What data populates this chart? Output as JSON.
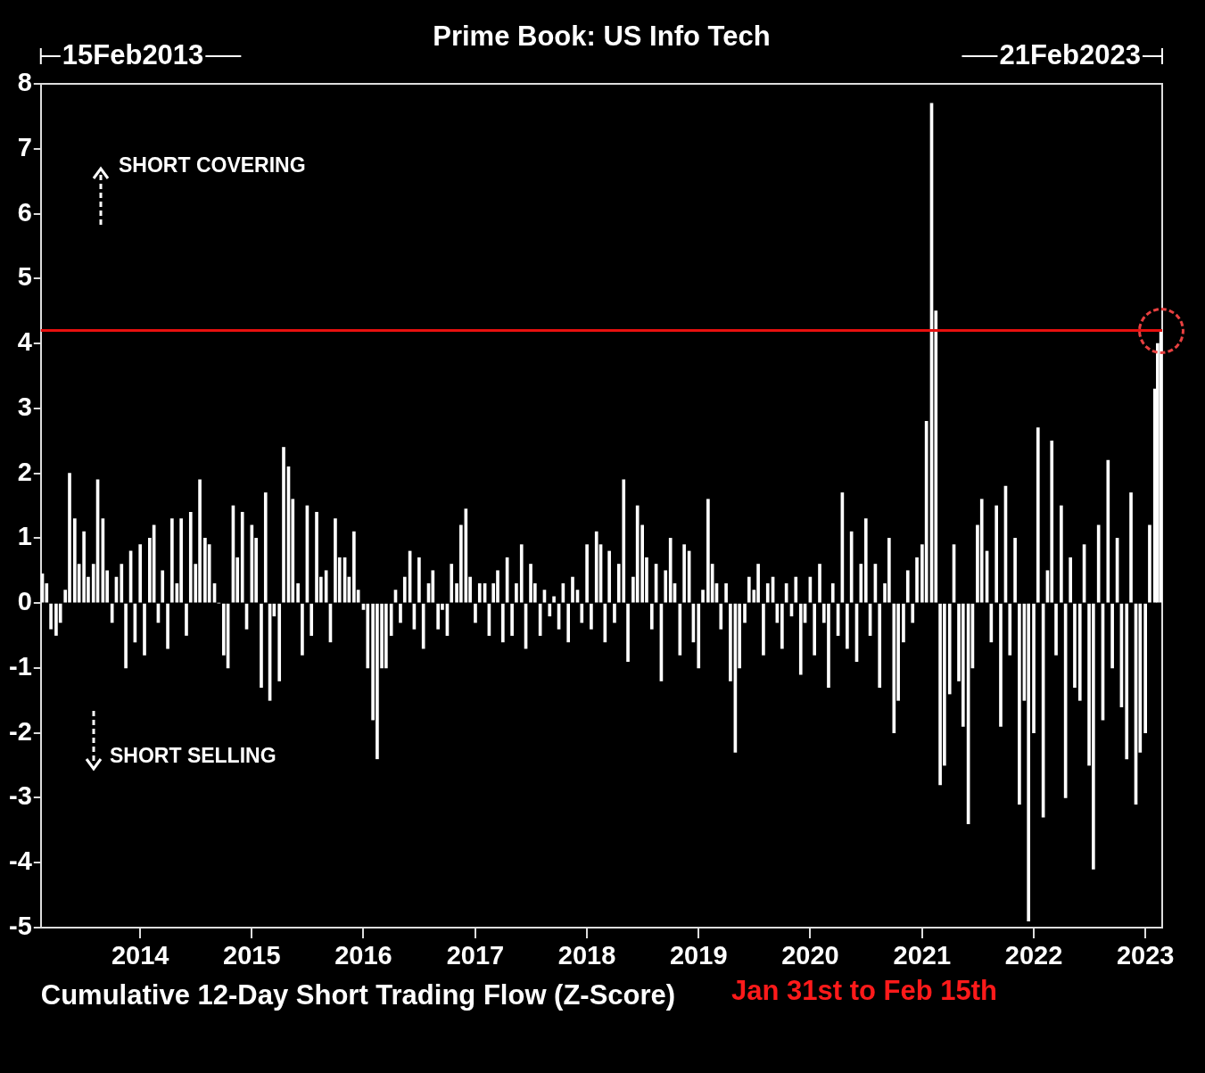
{
  "chart_data": {
    "type": "bar",
    "title": "Prime Book: US Info Tech",
    "xlabel": "Cumulative 12-Day Short Trading Flow (Z-Score)",
    "x": [
      "2013-02-15",
      "2013-03-01",
      "2013-03-15",
      "2013-04-01",
      "2013-04-15",
      "2013-05-01",
      "2013-05-15",
      "2013-06-01",
      "2013-06-15",
      "2013-07-01",
      "2013-07-15",
      "2013-08-01",
      "2013-08-15",
      "2013-09-01",
      "2013-09-15",
      "2013-10-01",
      "2013-10-15",
      "2013-11-01",
      "2013-11-15",
      "2013-12-01",
      "2013-12-15",
      "2014-01-01",
      "2014-01-15",
      "2014-02-01",
      "2014-02-15",
      "2014-03-01",
      "2014-03-15",
      "2014-04-01",
      "2014-04-15",
      "2014-05-01",
      "2014-05-15",
      "2014-06-01",
      "2014-06-15",
      "2014-07-01",
      "2014-07-15",
      "2014-08-01",
      "2014-08-15",
      "2014-09-01",
      "2014-09-15",
      "2014-10-01",
      "2014-10-15",
      "2014-11-01",
      "2014-11-15",
      "2014-12-01",
      "2014-12-15",
      "2015-01-01",
      "2015-01-15",
      "2015-02-01",
      "2015-02-15",
      "2015-03-01",
      "2015-03-15",
      "2015-04-01",
      "2015-04-15",
      "2015-05-01",
      "2015-05-15",
      "2015-06-01",
      "2015-06-15",
      "2015-07-01",
      "2015-07-15",
      "2015-08-01",
      "2015-08-15",
      "2015-09-01",
      "2015-09-15",
      "2015-10-01",
      "2015-10-15",
      "2015-11-01",
      "2015-11-15",
      "2015-12-01",
      "2015-12-15",
      "2016-01-01",
      "2016-01-15",
      "2016-02-01",
      "2016-02-15",
      "2016-03-01",
      "2016-03-15",
      "2016-04-01",
      "2016-04-15",
      "2016-05-01",
      "2016-05-15",
      "2016-06-01",
      "2016-06-15",
      "2016-07-01",
      "2016-07-15",
      "2016-08-01",
      "2016-08-15",
      "2016-09-01",
      "2016-09-15",
      "2016-10-01",
      "2016-10-15",
      "2016-11-01",
      "2016-11-15",
      "2016-12-01",
      "2016-12-15",
      "2017-01-01",
      "2017-01-15",
      "2017-02-01",
      "2017-02-15",
      "2017-03-01",
      "2017-03-15",
      "2017-04-01",
      "2017-04-15",
      "2017-05-01",
      "2017-05-15",
      "2017-06-01",
      "2017-06-15",
      "2017-07-01",
      "2017-07-15",
      "2017-08-01",
      "2017-08-15",
      "2017-09-01",
      "2017-09-15",
      "2017-10-01",
      "2017-10-15",
      "2017-11-01",
      "2017-11-15",
      "2017-12-01",
      "2017-12-15",
      "2018-01-01",
      "2018-01-15",
      "2018-02-01",
      "2018-02-15",
      "2018-03-01",
      "2018-03-15",
      "2018-04-01",
      "2018-04-15",
      "2018-05-01",
      "2018-05-15",
      "2018-06-01",
      "2018-06-15",
      "2018-07-01",
      "2018-07-15",
      "2018-08-01",
      "2018-08-15",
      "2018-09-01",
      "2018-09-15",
      "2018-10-01",
      "2018-10-15",
      "2018-11-01",
      "2018-11-15",
      "2018-12-01",
      "2018-12-15",
      "2019-01-01",
      "2019-01-15",
      "2019-02-01",
      "2019-02-15",
      "2019-03-01",
      "2019-03-15",
      "2019-04-01",
      "2019-04-15",
      "2019-05-01",
      "2019-05-15",
      "2019-06-01",
      "2019-06-15",
      "2019-07-01",
      "2019-07-15",
      "2019-08-01",
      "2019-08-15",
      "2019-09-01",
      "2019-09-15",
      "2019-10-01",
      "2019-10-15",
      "2019-11-01",
      "2019-11-15",
      "2019-12-01",
      "2019-12-15",
      "2020-01-01",
      "2020-01-15",
      "2020-02-01",
      "2020-02-15",
      "2020-03-01",
      "2020-03-15",
      "2020-04-01",
      "2020-04-15",
      "2020-05-01",
      "2020-05-15",
      "2020-06-01",
      "2020-06-15",
      "2020-07-01",
      "2020-07-15",
      "2020-08-01",
      "2020-08-15",
      "2020-09-01",
      "2020-09-15",
      "2020-10-01",
      "2020-10-15",
      "2020-11-01",
      "2020-11-15",
      "2020-12-01",
      "2020-12-15",
      "2021-01-01",
      "2021-01-15",
      "2021-02-01",
      "2021-02-15",
      "2021-03-01",
      "2021-03-15",
      "2021-04-01",
      "2021-04-15",
      "2021-05-01",
      "2021-05-15",
      "2021-06-01",
      "2021-06-15",
      "2021-07-01",
      "2021-07-15",
      "2021-08-01",
      "2021-08-15",
      "2021-09-01",
      "2021-09-15",
      "2021-10-01",
      "2021-10-15",
      "2021-11-01",
      "2021-11-15",
      "2021-12-01",
      "2021-12-15",
      "2022-01-01",
      "2022-01-15",
      "2022-02-01",
      "2022-02-15",
      "2022-03-01",
      "2022-03-15",
      "2022-04-01",
      "2022-04-15",
      "2022-05-01",
      "2022-05-15",
      "2022-06-01",
      "2022-06-15",
      "2022-07-01",
      "2022-07-15",
      "2022-08-01",
      "2022-08-15",
      "2022-09-01",
      "2022-09-15",
      "2022-10-01",
      "2022-10-15",
      "2022-11-01",
      "2022-11-15",
      "2022-12-01",
      "2022-12-15",
      "2023-01-01",
      "2023-01-15",
      "2023-02-01",
      "2023-02-10",
      "2023-02-21"
    ],
    "series": [
      {
        "color": "#ffffff",
        "values": [
          0.45,
          0.3,
          -0.4,
          -0.5,
          -0.3,
          0.2,
          2.0,
          1.3,
          0.6,
          1.1,
          0.4,
          0.6,
          1.9,
          1.3,
          0.5,
          -0.3,
          0.4,
          0.6,
          -1.0,
          0.8,
          -0.6,
          0.9,
          -0.8,
          1.0,
          1.2,
          -0.3,
          0.5,
          -0.7,
          1.3,
          0.3,
          1.3,
          -0.5,
          1.4,
          0.6,
          1.9,
          1.0,
          0.9,
          0.3,
          0.0,
          -0.8,
          -1.0,
          1.5,
          0.7,
          1.4,
          -0.4,
          1.2,
          1.0,
          -1.3,
          1.7,
          -1.5,
          -0.2,
          -1.2,
          2.4,
          2.1,
          1.6,
          0.3,
          -0.8,
          1.5,
          -0.5,
          1.4,
          0.4,
          0.5,
          -0.6,
          1.3,
          0.7,
          0.7,
          0.4,
          1.1,
          0.2,
          -0.1,
          -1.0,
          -1.8,
          -2.4,
          -1.0,
          -1.0,
          -0.5,
          0.2,
          -0.3,
          0.4,
          0.8,
          -0.4,
          0.7,
          -0.7,
          0.3,
          0.5,
          -0.4,
          -0.1,
          -0.5,
          0.6,
          0.3,
          1.2,
          1.45,
          0.4,
          -0.3,
          0.3,
          0.3,
          -0.5,
          0.3,
          0.5,
          -0.6,
          0.7,
          -0.5,
          0.3,
          0.9,
          -0.7,
          0.6,
          0.3,
          -0.5,
          0.2,
          -0.2,
          0.1,
          -0.4,
          0.3,
          -0.6,
          0.4,
          0.2,
          -0.3,
          0.9,
          -0.4,
          1.1,
          0.9,
          -0.6,
          0.8,
          -0.3,
          0.6,
          1.9,
          -0.9,
          0.4,
          1.5,
          1.2,
          0.7,
          -0.4,
          0.6,
          -1.2,
          0.5,
          1.0,
          0.3,
          -0.8,
          0.9,
          0.8,
          -0.6,
          -1.0,
          0.2,
          1.6,
          0.6,
          0.3,
          -0.4,
          0.3,
          -1.2,
          -2.3,
          -1.0,
          -0.3,
          0.4,
          0.2,
          0.6,
          -0.8,
          0.3,
          0.4,
          -0.3,
          -0.7,
          0.3,
          -0.2,
          0.4,
          -1.1,
          -0.3,
          0.4,
          -0.8,
          0.6,
          -0.3,
          -1.3,
          0.3,
          -0.5,
          1.7,
          -0.7,
          1.1,
          -0.9,
          0.6,
          1.3,
          -0.5,
          0.6,
          -1.3,
          0.3,
          1.0,
          -2.0,
          -1.5,
          -0.6,
          0.5,
          -0.3,
          0.7,
          0.9,
          2.8,
          7.7,
          4.5,
          -2.8,
          -2.5,
          -1.4,
          0.9,
          -1.2,
          -1.9,
          -3.4,
          -1.0,
          1.2,
          1.6,
          0.8,
          -0.6,
          1.5,
          -1.9,
          1.8,
          -0.8,
          1.0,
          -3.1,
          -1.5,
          -4.9,
          -2.0,
          2.7,
          -3.3,
          0.5,
          2.5,
          -0.8,
          1.5,
          -3.0,
          0.7,
          -1.3,
          -1.5,
          0.9,
          -2.5,
          -4.1,
          1.2,
          -1.8,
          2.2,
          -1.0,
          1.0,
          -1.6,
          -2.4,
          1.7,
          -3.1,
          -2.3,
          -2.0,
          1.2,
          3.3,
          4.0,
          4.2
        ]
      }
    ],
    "xlim": [
      "2013-02-10",
      "2023-02-25"
    ],
    "xticks": [
      {
        "value": "2014-01-01",
        "label": "2014"
      },
      {
        "value": "2015-01-01",
        "label": "2015"
      },
      {
        "value": "2016-01-01",
        "label": "2016"
      },
      {
        "value": "2017-01-01",
        "label": "2017"
      },
      {
        "value": "2018-01-01",
        "label": "2018"
      },
      {
        "value": "2019-01-01",
        "label": "2019"
      },
      {
        "value": "2020-01-01",
        "label": "2020"
      },
      {
        "value": "2021-01-01",
        "label": "2021"
      },
      {
        "value": "2022-01-01",
        "label": "2022"
      },
      {
        "value": "2023-01-01",
        "label": "2023"
      }
    ],
    "ylim": [
      -5,
      8
    ],
    "yticks": [
      -5,
      -4,
      -3,
      -2,
      -1,
      0,
      1,
      2,
      3,
      4,
      5,
      6,
      7,
      8
    ],
    "ref_lines": [
      {
        "axis": "y",
        "value": 4.2,
        "color": "#e8100f"
      }
    ],
    "annotations": [
      "15Feb2013",
      "21Feb2023",
      "SHORT COVERING",
      "SHORT SELLING",
      "Jan 31st to Feb 15th"
    ],
    "grid": false,
    "legend": false
  }
}
